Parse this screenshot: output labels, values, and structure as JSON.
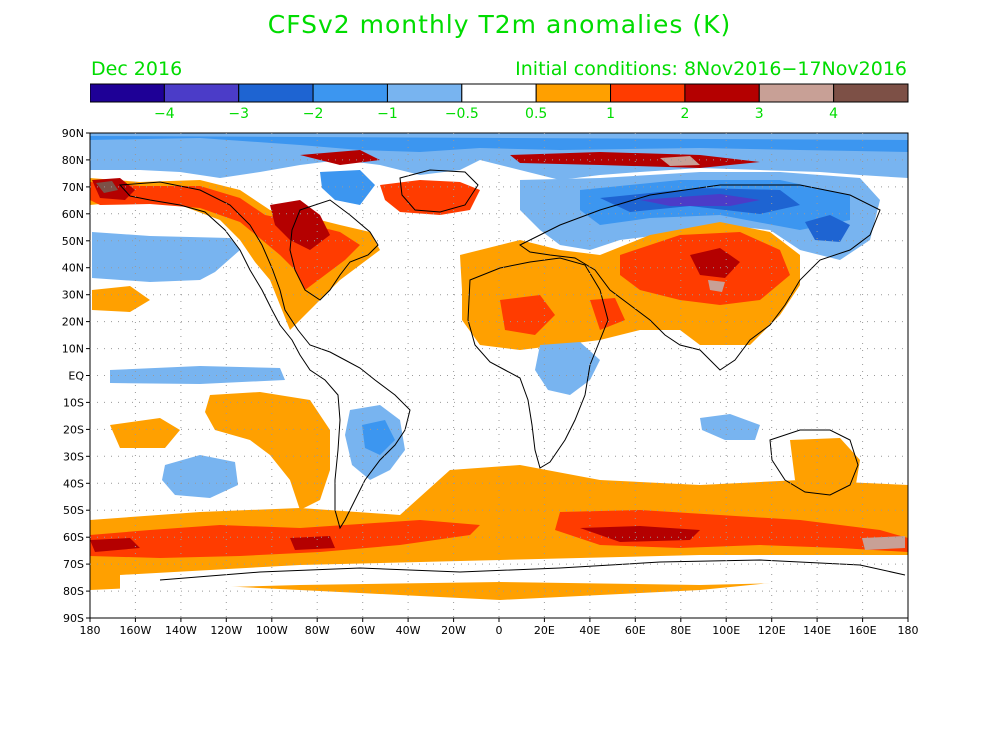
{
  "title": "CFSv2 monthly T2m anomalies (K)",
  "valid_month": "Dec 2016",
  "initial_conditions": "Initial conditions: 8Nov2016−17Nov2016",
  "colors": {
    "text": "#00dc00",
    "bins": [
      "#1e0096",
      "#4b3cc8",
      "#1e64d2",
      "#3c96f0",
      "#78b4f0",
      "#ffffff",
      "#ffa000",
      "#ff3c00",
      "#b40000",
      "#c8a096",
      "#7d5046"
    ]
  },
  "legend": {
    "labels": [
      "−4",
      "−3",
      "−2",
      "−1",
      "−0.5",
      "0.5",
      "1",
      "2",
      "3",
      "4"
    ]
  },
  "axes": {
    "lat_labels": [
      "90N",
      "80N",
      "70N",
      "60N",
      "50N",
      "40N",
      "30N",
      "20N",
      "10N",
      "EQ",
      "10S",
      "20S",
      "30S",
      "40S",
      "50S",
      "60S",
      "70S",
      "80S",
      "90S"
    ],
    "lon_labels": [
      "180",
      "160W",
      "140W",
      "120W",
      "100W",
      "80W",
      "60W",
      "40W",
      "20W",
      "0",
      "20E",
      "40E",
      "60E",
      "80E",
      "100E",
      "120E",
      "140E",
      "160E",
      "180"
    ]
  }
}
